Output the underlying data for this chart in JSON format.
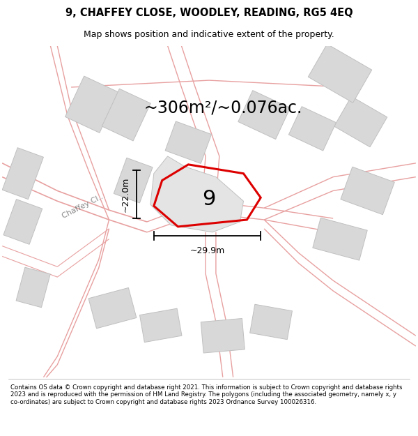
{
  "title": "9, CHAFFEY CLOSE, WOODLEY, READING, RG5 4EQ",
  "subtitle": "Map shows position and indicative extent of the property.",
  "area_text": "~306m²/~0.076ac.",
  "width_label": "~29.9m",
  "height_label": "~22.0m",
  "number_label": "9",
  "footer": "Contains OS data © Crown copyright and database right 2021. This information is subject to Crown copyright and database rights 2023 and is reproduced with the permission of HM Land Registry. The polygons (including the associated geometry, namely x, y co-ordinates) are subject to Crown copyright and database rights 2023 Ordnance Survey 100026316.",
  "map_bg": "#f2f2f2",
  "footer_bg": "#ffffff",
  "road_color": "#e8a0a0",
  "building_color": "#d8d8d8",
  "building_stroke": "#c0c0c0",
  "red_color": "#dd0000",
  "title_fontsize": 10.5,
  "subtitle_fontsize": 9,
  "area_fontsize": 17,
  "number_fontsize": 22,
  "dim_fontsize": 9,
  "street_fontsize": 8
}
